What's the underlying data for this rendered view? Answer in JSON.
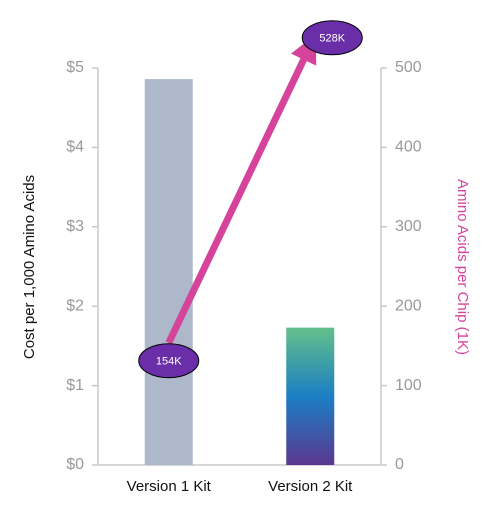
{
  "chart_data": {
    "type": "bar",
    "categories": [
      "Version 1 Kit",
      "Version 2 Kit"
    ],
    "y_label": "Cost per 1,000 Amino Acids",
    "y2_label": "Amino Acids per Chip (1K)",
    "ylim": [
      0,
      5
    ],
    "yticks": [
      {
        "value": 0,
        "label": "$0"
      },
      {
        "value": 1,
        "label": "$1"
      },
      {
        "value": 2,
        "label": "$2"
      },
      {
        "value": 3,
        "label": "$3"
      },
      {
        "value": 4,
        "label": "$4"
      },
      {
        "value": 5,
        "label": "$5"
      }
    ],
    "y2lim": [
      0,
      500
    ],
    "y2ticks": [
      0,
      100,
      200,
      300,
      400,
      500
    ],
    "series": [
      {
        "type": "bar",
        "values": [
          4.86,
          1.73
        ],
        "colors": [
          "#adb9ca",
          [
            "#63c08a",
            "#1b7fc4",
            "#5b3790"
          ]
        ]
      },
      {
        "type": "line",
        "axis": "y2",
        "values": [
          154,
          528
        ],
        "value_labels": [
          "154K",
          "528K"
        ],
        "color": "#d6439b",
        "label_color": "#6a2fa8"
      }
    ]
  }
}
